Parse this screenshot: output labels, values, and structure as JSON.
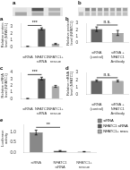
{
  "chart_data": [
    {
      "type": "heatmap",
      "title": "a",
      "cells": [
        [
          0.15,
          0.85,
          0.4
        ],
        [
          0.7,
          0.65,
          0.6
        ]
      ],
      "tick_labels": false
    },
    {
      "type": "bar",
      "title": "a",
      "categories": [
        "siRNA",
        "NFATC1\nsiRNA",
        "NFATC1+\nrescue"
      ],
      "values": [
        0.08,
        2.7,
        0.45
      ],
      "errors": [
        0.0,
        0.15,
        0.08
      ],
      "colors": [
        "#888888",
        "#555555",
        "#aaaaaa"
      ],
      "ylabel": "Relative protein\nlevel (NFATC1)",
      "ylim": [
        0,
        3.5
      ],
      "yticks": [
        0,
        1,
        2,
        3
      ],
      "grid": false,
      "annotations": [
        {
          "text": "***",
          "from": "siRNA",
          "to": "NFATC1\nsiRNA",
          "y": 3.2
        }
      ]
    },
    {
      "type": "heatmap",
      "title": "b",
      "cells": [
        [
          0.1,
          0.6,
          0.55,
          0.5,
          0.5,
          0.45,
          0.5,
          0.45
        ],
        [
          0.5,
          0.5,
          0.5,
          0.5,
          0.5,
          0.5,
          0.5,
          0.5
        ]
      ],
      "tick_labels": false
    },
    {
      "type": "bar",
      "title": "b",
      "categories": [
        "siRNA\n(control)",
        "siRNA +\nNFATC1\nAntibody"
      ],
      "values": [
        2.1,
        1.5
      ],
      "errors": [
        0.35,
        0.4
      ],
      "colors": [
        "#666666",
        "#aaaaaa"
      ],
      "ylabel": "Relative protein\nlevel (NFATC1)",
      "ylim": [
        0,
        3.0
      ],
      "yticks": [
        0,
        1,
        2,
        3
      ],
      "grid": false,
      "annotations": [
        {
          "text": "n.s.",
          "from": "siRNA\n(control)",
          "to": "siRNA +\nNFATC1\nAntibody",
          "y": 2.75
        }
      ]
    },
    {
      "type": "bar",
      "title": "c",
      "categories": [
        "siRNA",
        "NFATC1\nsiRNA",
        "NFATC1+\nrescue"
      ],
      "values": [
        0.04,
        3.1,
        1.9
      ],
      "errors": [
        0.01,
        0.2,
        0.15
      ],
      "colors": [
        "#888888",
        "#555555",
        "#aaaaaa"
      ],
      "ylabel": "Relative mRNA\nlevel (NFATC1)",
      "ylim": [
        0,
        4.0
      ],
      "yticks": [
        0,
        1,
        2,
        3,
        4
      ],
      "grid": false,
      "annotations": [
        {
          "text": "***",
          "from": "siRNA",
          "to": "NFATC1\nsiRNA",
          "y": 3.7
        }
      ]
    },
    {
      "type": "bar",
      "title": "d",
      "categories": [
        "siRNA\n(control)",
        "siRNA +\nNFATC1\nAntibody"
      ],
      "values": [
        1.9,
        1.85
      ],
      "errors": [
        0.1,
        0.12
      ],
      "colors": [
        "#666666",
        "#aaaaaa"
      ],
      "ylabel": "Relative mRNA\nlevel (NFATC1)",
      "ylim": [
        0,
        3.0
      ],
      "yticks": [
        0,
        1,
        2,
        3
      ],
      "grid": false,
      "annotations": [
        {
          "text": "n.s.",
          "from": "siRNA\n(control)",
          "to": "siRNA +\nNFATC1\nAntibody",
          "y": 2.3
        }
      ]
    },
    {
      "type": "bar",
      "title": "e",
      "categories": [
        "siRNA",
        "NFATC1\nsiRNA",
        "NFATC1+\nrescue"
      ],
      "values": [
        1.0,
        0.08,
        0.04
      ],
      "errors": [
        0.12,
        0.02,
        0.01
      ],
      "colors": [
        "#888888",
        "#555555",
        "#aaaaaa"
      ],
      "ylabel": "Luciferase\nactivity",
      "ylim": [
        0,
        1.4
      ],
      "yticks": [
        {
          "value": 0,
          "label": "0.0"
        },
        0.5,
        {
          "value": 1.0,
          "label": "1.0"
        }
      ],
      "grid": false,
      "legend": "upper right",
      "annotations": [
        {
          "text": "**",
          "from": "siRNA",
          "to": "NFATC1\nsiRNA",
          "y": 1.26
        }
      ]
    }
  ]
}
